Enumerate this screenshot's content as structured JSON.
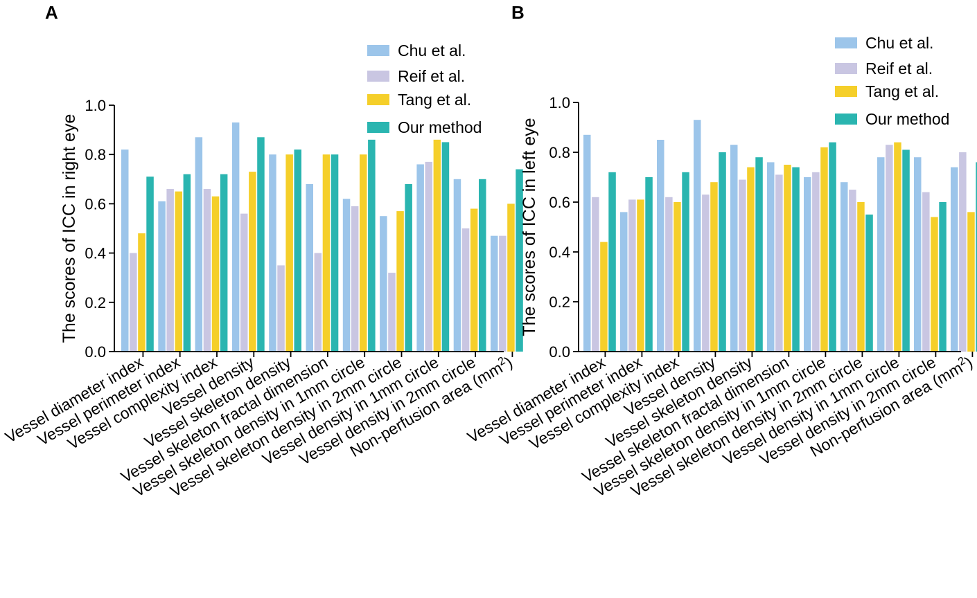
{
  "chart_data": [
    {
      "panel": "A",
      "type": "bar",
      "ylabel": "The scores of ICC in right eye",
      "ylim": [
        0.0,
        1.0
      ],
      "yticks": [
        "0.0",
        "0.2",
        "0.4",
        "0.6",
        "0.8",
        "1.0"
      ],
      "categories": [
        "Vessel diameter index",
        "Vessel perimeter index",
        "Vessel complexity index",
        "Vessel density",
        "Vessel skeleton density",
        "Vessel skeleton fractal dimension",
        "Vessel skeleton density in 1mm circle",
        "Vessel skeleton density in 2mm circle",
        "Vessel density in 1mm circle",
        "Vessel density in 2mm circle",
        "Non-perfusion area (mm²)"
      ],
      "series": [
        {
          "name": "Chu et al.",
          "color": "#9cc5ea",
          "values": [
            0.82,
            0.61,
            0.87,
            0.93,
            0.8,
            0.68,
            0.62,
            0.55,
            0.76,
            0.7,
            0.47
          ]
        },
        {
          "name": "Reif et al.",
          "color": "#c9c6e2",
          "values": [
            0.4,
            0.66,
            0.66,
            0.56,
            0.35,
            0.4,
            0.59,
            0.32,
            0.77,
            0.5,
            0.47
          ]
        },
        {
          "name": "Tang et al.",
          "color": "#f5cf2a",
          "values": [
            0.48,
            0.65,
            0.63,
            0.73,
            0.8,
            0.8,
            0.8,
            0.57,
            0.86,
            0.58,
            0.6
          ]
        },
        {
          "name": "Our method",
          "color": "#2ab5b0",
          "values": [
            0.71,
            0.72,
            0.72,
            0.87,
            0.82,
            0.8,
            0.86,
            0.68,
            0.85,
            0.7,
            0.74
          ]
        }
      ]
    },
    {
      "panel": "B",
      "type": "bar",
      "ylabel": "The scores of ICC in left eye",
      "ylim": [
        0.0,
        1.0
      ],
      "yticks": [
        "0.0",
        "0.2",
        "0.4",
        "0.6",
        "0.8",
        "1.0"
      ],
      "categories": [
        "Vessel diameter index",
        "Vessel perimeter index",
        "Vessel complexity index",
        "Vessel density",
        "Vessel skeleton density",
        "Vessel skeleton fractal dimension",
        "Vessel skeleton density in 1mm circle",
        "Vessel skeleton density in 2mm circle",
        "Vessel density in 1mm circle",
        "Vessel density in 2mm circle",
        "Non-perfusion area (mm²)"
      ],
      "series": [
        {
          "name": "Chu et al.",
          "color": "#9cc5ea",
          "values": [
            0.87,
            0.56,
            0.85,
            0.93,
            0.83,
            0.76,
            0.7,
            0.68,
            0.78,
            0.78,
            0.74
          ]
        },
        {
          "name": "Reif et al.",
          "color": "#c9c6e2",
          "values": [
            0.62,
            0.61,
            0.62,
            0.63,
            0.69,
            0.71,
            0.72,
            0.65,
            0.83,
            0.64,
            0.8
          ]
        },
        {
          "name": "Tang et al.",
          "color": "#f5cf2a",
          "values": [
            0.44,
            0.61,
            0.6,
            0.68,
            0.74,
            0.75,
            0.82,
            0.6,
            0.84,
            0.54,
            0.56
          ]
        },
        {
          "name": "Our method",
          "color": "#2ab5b0",
          "values": [
            0.72,
            0.7,
            0.72,
            0.8,
            0.78,
            0.74,
            0.84,
            0.55,
            0.81,
            0.6,
            0.76
          ]
        }
      ]
    }
  ]
}
